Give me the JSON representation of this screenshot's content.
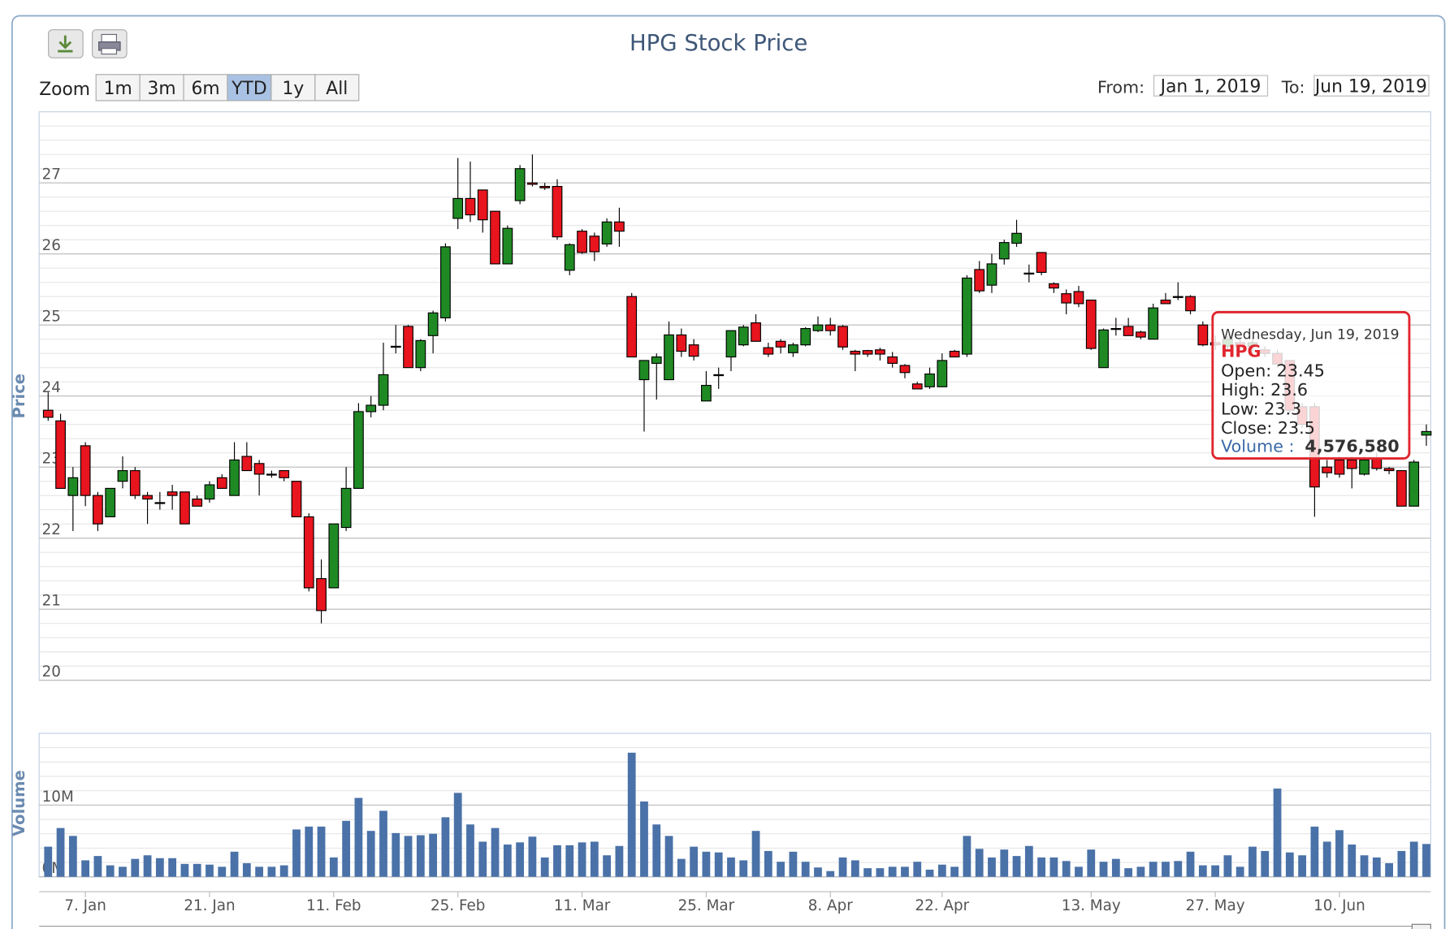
{
  "chart_data": {
    "type": "candlestick",
    "title": "HPG Stock Price",
    "zoom_label": "Zoom",
    "zoom_buttons": [
      "1m",
      "3m",
      "6m",
      "YTD",
      "1y",
      "All"
    ],
    "zoom_selected": "YTD",
    "from_label": "From:",
    "from": "Jan 1, 2019",
    "to_label": "To:",
    "to": "Jun 19, 2019",
    "x": [
      "2019-01-02",
      "2019-01-03",
      "2019-01-04",
      "2019-01-07",
      "2019-01-08",
      "2019-01-09",
      "2019-01-10",
      "2019-01-11",
      "2019-01-14",
      "2019-01-15",
      "2019-01-16",
      "2019-01-17",
      "2019-01-18",
      "2019-01-21",
      "2019-01-22",
      "2019-01-23",
      "2019-01-24",
      "2019-01-25",
      "2019-01-28",
      "2019-01-29",
      "2019-01-30",
      "2019-01-31",
      "2019-02-01",
      "2019-02-11",
      "2019-02-12",
      "2019-02-13",
      "2019-02-14",
      "2019-02-15",
      "2019-02-18",
      "2019-02-19",
      "2019-02-20",
      "2019-02-21",
      "2019-02-22",
      "2019-02-25",
      "2019-02-26",
      "2019-02-27",
      "2019-02-28",
      "2019-03-01",
      "2019-03-04",
      "2019-03-05",
      "2019-03-06",
      "2019-03-07",
      "2019-03-08",
      "2019-03-11",
      "2019-03-12",
      "2019-03-13",
      "2019-03-14",
      "2019-03-15",
      "2019-03-18",
      "2019-03-19",
      "2019-03-20",
      "2019-03-21",
      "2019-03-22",
      "2019-03-25",
      "2019-03-26",
      "2019-03-27",
      "2019-03-28",
      "2019-03-29",
      "2019-04-01",
      "2019-04-02",
      "2019-04-03",
      "2019-04-04",
      "2019-04-05",
      "2019-04-08",
      "2019-04-09",
      "2019-04-10",
      "2019-04-11",
      "2019-04-12",
      "2019-04-16",
      "2019-04-17",
      "2019-04-18",
      "2019-04-19",
      "2019-04-22",
      "2019-04-23",
      "2019-04-24",
      "2019-04-25",
      "2019-04-26",
      "2019-05-02",
      "2019-05-03",
      "2019-05-06",
      "2019-05-07",
      "2019-05-08",
      "2019-05-09",
      "2019-05-10",
      "2019-05-13",
      "2019-05-14",
      "2019-05-15",
      "2019-05-16",
      "2019-05-17",
      "2019-05-20",
      "2019-05-21",
      "2019-05-22",
      "2019-05-23",
      "2019-05-24",
      "2019-05-27",
      "2019-05-28",
      "2019-05-29",
      "2019-05-30",
      "2019-05-31",
      "2019-06-03",
      "2019-06-04",
      "2019-06-05",
      "2019-06-06",
      "2019-06-07",
      "2019-06-10",
      "2019-06-11",
      "2019-06-12",
      "2019-06-13",
      "2019-06-14",
      "2019-06-17",
      "2019-06-18",
      "2019-06-19"
    ],
    "xticks": [
      {
        "value": "2019-01-07",
        "label": "7. Jan"
      },
      {
        "value": "2019-01-21",
        "label": "21. Jan"
      },
      {
        "value": "2019-02-11",
        "label": "11. Feb"
      },
      {
        "value": "2019-02-25",
        "label": "25. Feb"
      },
      {
        "value": "2019-03-11",
        "label": "11. Mar"
      },
      {
        "value": "2019-03-25",
        "label": "25. Mar"
      },
      {
        "value": "2019-04-08",
        "label": "8. Apr"
      },
      {
        "value": "2019-04-22",
        "label": "22. Apr"
      },
      {
        "value": "2019-05-13",
        "label": "13. May"
      },
      {
        "value": "2019-05-27",
        "label": "27. May"
      },
      {
        "value": "2019-06-10",
        "label": "10. Jun"
      }
    ],
    "open": [
      23.8,
      23.65,
      22.6,
      23.3,
      22.6,
      22.3,
      22.8,
      22.95,
      22.6,
      22.5,
      22.65,
      22.65,
      22.55,
      22.55,
      22.85,
      22.6,
      23.15,
      23.05,
      22.9,
      22.95,
      22.8,
      22.3,
      21.43,
      21.3,
      22.15,
      22.7,
      23.78,
      23.87,
      24.7,
      24.98,
      24.4,
      24.85,
      25.1,
      26.5,
      26.78,
      26.9,
      26.6,
      25.86,
      26.75,
      27.0,
      26.95,
      26.95,
      25.77,
      26.32,
      26.25,
      26.14,
      26.45,
      25.4,
      24.23,
      24.46,
      24.23,
      24.86,
      24.72,
      23.93,
      24.3,
      24.55,
      24.72,
      25.03,
      24.68,
      24.77,
      24.61,
      24.72,
      24.92,
      25.0,
      24.98,
      24.63,
      24.64,
      24.65,
      24.55,
      24.43,
      24.17,
      24.13,
      24.13,
      24.63,
      24.59,
      25.78,
      25.56,
      25.93,
      26.15,
      25.73,
      26.02,
      25.58,
      25.44,
      25.47,
      25.35,
      24.4,
      24.95,
      24.98,
      24.9,
      24.8,
      25.35,
      25.4,
      25.4,
      25.0,
      24.75,
      24.7,
      24.75,
      24.7,
      24.65,
      24.6,
      24.5,
      23.85,
      23.85,
      23.0,
      23.1,
      23.1,
      22.9,
      23.12,
      22.98,
      22.95,
      22.45,
      23.45
    ],
    "high": [
      24.05,
      23.75,
      23.0,
      23.35,
      22.65,
      22.7,
      23.15,
      23.0,
      22.65,
      22.65,
      22.75,
      22.65,
      22.6,
      22.8,
      22.9,
      23.35,
      23.35,
      23.1,
      22.95,
      22.95,
      22.8,
      22.35,
      21.7,
      22.2,
      23.0,
      23.9,
      24.0,
      24.75,
      25.0,
      25.0,
      24.8,
      25.2,
      26.15,
      27.35,
      27.3,
      26.9,
      26.6,
      26.4,
      27.25,
      27.4,
      27.0,
      27.05,
      26.15,
      26.35,
      26.3,
      26.5,
      26.65,
      25.45,
      24.5,
      24.6,
      25.05,
      24.95,
      24.8,
      24.35,
      24.4,
      24.92,
      25.0,
      25.15,
      24.75,
      24.8,
      24.75,
      24.97,
      25.12,
      25.1,
      25.0,
      24.65,
      24.65,
      24.68,
      24.62,
      24.45,
      24.2,
      24.4,
      24.6,
      24.65,
      25.7,
      25.9,
      26.0,
      26.2,
      26.48,
      25.85,
      26.02,
      25.6,
      25.5,
      25.55,
      25.35,
      24.95,
      25.1,
      25.1,
      24.92,
      25.3,
      25.45,
      25.6,
      25.42,
      25.05,
      24.85,
      24.85,
      24.8,
      24.8,
      24.7,
      24.65,
      24.5,
      23.9,
      23.9,
      23.1,
      23.15,
      23.15,
      23.15,
      23.2,
      23.0,
      22.95,
      23.1,
      23.6
    ],
    "low": [
      23.65,
      22.7,
      22.1,
      22.45,
      22.1,
      22.3,
      22.7,
      22.55,
      22.2,
      22.4,
      22.4,
      22.2,
      22.45,
      22.5,
      22.7,
      22.6,
      22.95,
      22.6,
      22.85,
      22.8,
      22.3,
      21.25,
      20.8,
      21.3,
      22.1,
      22.7,
      23.7,
      23.8,
      24.6,
      24.4,
      24.35,
      24.6,
      25.05,
      26.35,
      26.45,
      26.3,
      25.86,
      25.86,
      26.7,
      26.95,
      26.9,
      26.2,
      25.7,
      26.0,
      25.9,
      26.1,
      26.1,
      24.55,
      23.5,
      23.95,
      24.23,
      24.55,
      24.5,
      23.93,
      24.1,
      24.35,
      24.7,
      24.77,
      24.55,
      24.6,
      24.55,
      24.7,
      24.9,
      24.85,
      24.65,
      24.35,
      24.55,
      24.5,
      24.4,
      24.25,
      24.1,
      24.1,
      24.13,
      24.55,
      24.55,
      25.45,
      25.45,
      25.85,
      26.1,
      25.6,
      25.7,
      25.45,
      25.15,
      25.25,
      24.65,
      24.4,
      24.85,
      24.85,
      24.8,
      24.8,
      25.3,
      25.35,
      25.15,
      24.7,
      24.65,
      24.65,
      24.65,
      24.6,
      24.55,
      24.4,
      23.75,
      23.55,
      22.3,
      22.85,
      22.85,
      22.7,
      22.88,
      22.95,
      22.9,
      22.45,
      22.45,
      23.3
    ],
    "close": [
      23.7,
      22.7,
      22.85,
      22.6,
      22.2,
      22.7,
      22.95,
      22.6,
      22.55,
      22.5,
      22.6,
      22.2,
      22.45,
      22.75,
      22.7,
      23.1,
      22.95,
      22.9,
      22.9,
      22.85,
      22.3,
      21.3,
      20.98,
      22.2,
      22.7,
      23.78,
      23.87,
      24.3,
      24.7,
      24.4,
      24.78,
      25.17,
      26.1,
      26.78,
      26.55,
      26.48,
      25.86,
      26.36,
      27.2,
      26.98,
      26.93,
      26.24,
      26.13,
      26.02,
      26.03,
      26.45,
      26.32,
      24.55,
      24.5,
      24.55,
      24.86,
      24.63,
      24.56,
      24.15,
      24.3,
      24.92,
      24.97,
      24.77,
      24.59,
      24.69,
      24.72,
      24.95,
      25.0,
      24.92,
      24.69,
      24.59,
      24.59,
      24.59,
      24.46,
      24.33,
      24.1,
      24.31,
      24.5,
      24.55,
      25.66,
      25.48,
      25.86,
      26.16,
      26.29,
      25.73,
      25.74,
      25.52,
      25.31,
      25.3,
      24.67,
      24.93,
      24.95,
      24.85,
      24.83,
      25.24,
      25.3,
      25.4,
      25.2,
      24.72,
      24.72,
      24.8,
      24.7,
      24.75,
      24.6,
      24.45,
      23.8,
      23.6,
      22.72,
      22.92,
      22.9,
      22.98,
      23.1,
      22.98,
      22.95,
      22.45,
      23.07,
      23.5
    ],
    "up_color": "#1f8a24",
    "down_color": "#e8141e",
    "ylabel": "Price",
    "ylim": [
      20,
      28
    ],
    "yticks": [
      20,
      21,
      22,
      23,
      24,
      25,
      26,
      27
    ],
    "volume": [
      4200000,
      6800000,
      5700000,
      2300000,
      2900000,
      1600000,
      1400000,
      2500000,
      3000000,
      2600000,
      2600000,
      1800000,
      1800000,
      1700000,
      1400000,
      3500000,
      1900000,
      1400000,
      1400000,
      1600000,
      6600000,
      7000000,
      7000000,
      2700000,
      7800000,
      11000000,
      6400000,
      9200000,
      6100000,
      5700000,
      5800000,
      6000000,
      8300000,
      11700000,
      7300000,
      4900000,
      6800000,
      4500000,
      4800000,
      5600000,
      2700000,
      4400000,
      4400000,
      4800000,
      4900000,
      3000000,
      4300000,
      17300000,
      10500000,
      7300000,
      5700000,
      2500000,
      4200000,
      3500000,
      3400000,
      2700000,
      2300000,
      6400000,
      3600000,
      2100000,
      3500000,
      2100000,
      1300000,
      800000,
      2700000,
      2300000,
      1200000,
      1200000,
      1400000,
      1400000,
      2100000,
      1000000,
      1700000,
      1400000,
      5700000,
      3900000,
      2700000,
      3800000,
      2900000,
      4300000,
      2700000,
      2700000,
      2200000,
      1400000,
      3800000,
      2100000,
      2500000,
      1200000,
      1400000,
      2100000,
      2100000,
      2200000,
      3500000,
      1600000,
      1600000,
      3000000,
      1400000,
      4200000,
      3600000,
      12300000,
      3400000,
      3000000,
      7000000,
      4900000,
      6500000,
      4500000,
      3000000,
      2700000,
      1900000,
      3600000,
      4900000,
      4576580
    ],
    "volume_color": "#4a72a8",
    "y2label": "Volume",
    "y2lim": [
      0,
      20000000
    ],
    "y2ticks": [
      {
        "value": 0,
        "label": "0M"
      },
      {
        "value": 10000000,
        "label": "10M"
      }
    ],
    "grid": true,
    "tooltip": {
      "date": "Wednesday, Jun 19, 2019",
      "name": "HPG",
      "rows": [
        {
          "label": "Open:",
          "value": 23.45
        },
        {
          "label": "High:",
          "value": 23.6
        },
        {
          "label": "Low:",
          "value": 23.3
        },
        {
          "label": "Close:",
          "value": 23.5
        }
      ],
      "volume_label": "Volume :",
      "volume": {
        "value": 4576580,
        "label": "4,576,580"
      }
    }
  }
}
